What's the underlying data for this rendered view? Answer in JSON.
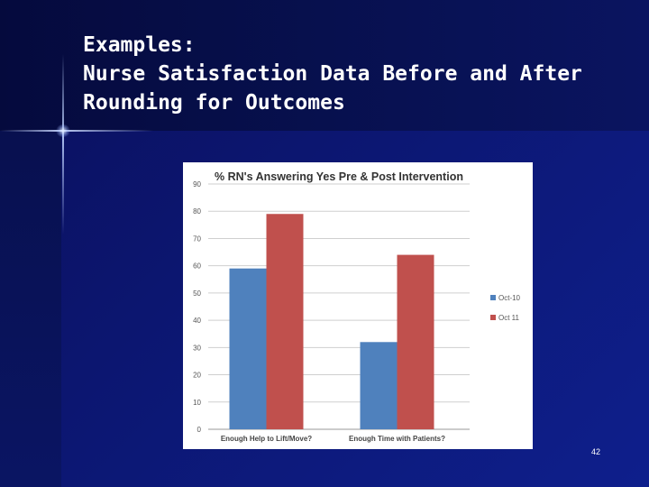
{
  "slide": {
    "title_lines": [
      "Examples:",
      "Nurse Satisfaction Data Before and After",
      "Rounding for Outcomes"
    ],
    "slide_number": "42"
  },
  "colors": {
    "background": "#0c1670",
    "title_text": "#ffffff",
    "series_oct10": "#4f81bd",
    "series_oct11": "#c0504d"
  },
  "chart_data": {
    "type": "bar",
    "title": "% RN's Answering Yes Pre & Post Intervention",
    "categories": [
      "Enough Help to Lift/Move?",
      "Enough Time with Patients?"
    ],
    "series": [
      {
        "name": "Oct-10",
        "values": [
          59,
          32
        ],
        "color": "#4f81bd"
      },
      {
        "name": "Oct 11",
        "values": [
          79,
          64
        ],
        "color": "#c0504d"
      }
    ],
    "y_ticks": [
      "0",
      "10",
      "20",
      "30",
      "40",
      "50",
      "60",
      "70",
      "80",
      "90"
    ],
    "ylim": [
      0,
      90
    ],
    "grid": true,
    "legend_position": "right"
  }
}
